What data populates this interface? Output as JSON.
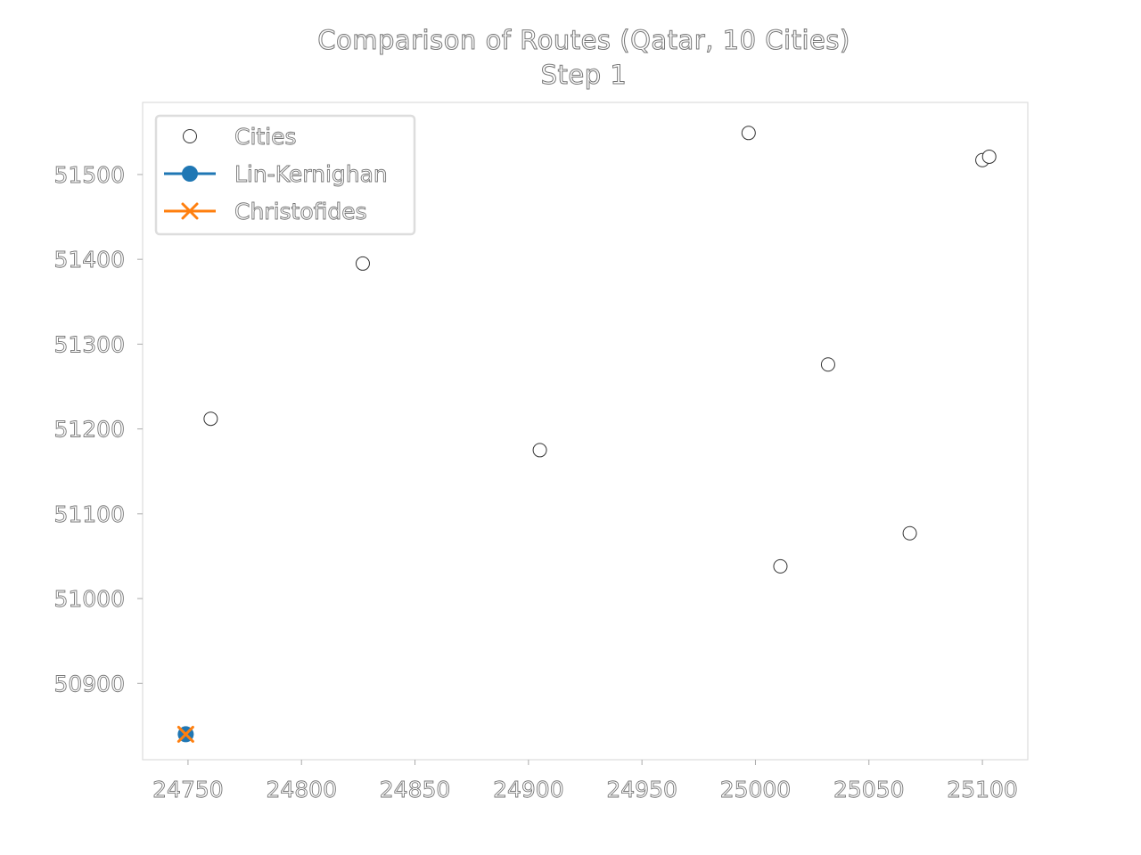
{
  "chart_data": {
    "type": "scatter",
    "title": "Comparison of Routes (Qatar, 10 Cities)",
    "subtitle": "Step 1",
    "xlabel": "",
    "ylabel": "",
    "xlim": [
      24730,
      25120
    ],
    "ylim": [
      50810,
      51585
    ],
    "x_ticks": [
      24750,
      24800,
      24850,
      24900,
      24950,
      25000,
      25050,
      25100
    ],
    "y_ticks": [
      50900,
      51000,
      51100,
      51200,
      51300,
      51400,
      51500
    ],
    "grid": false,
    "legend_position": "top-left",
    "series": [
      {
        "name": "Cities",
        "marker": "open-circle",
        "color": "#ffffff",
        "edge_color": "#333333",
        "points": [
          {
            "x": 24749,
            "y": 50840
          },
          {
            "x": 24760,
            "y": 51212
          },
          {
            "x": 24827,
            "y": 51395
          },
          {
            "x": 24905,
            "y": 51175
          },
          {
            "x": 24997,
            "y": 51549
          },
          {
            "x": 25011,
            "y": 51038
          },
          {
            "x": 25032,
            "y": 51276
          },
          {
            "x": 25068,
            "y": 51077
          },
          {
            "x": 25100,
            "y": 51517
          },
          {
            "x": 25103,
            "y": 51521
          }
        ]
      },
      {
        "name": "Lin-Kernighan",
        "marker": "filled-circle",
        "color": "#1f77b4",
        "points": [
          {
            "x": 24749,
            "y": 50840
          }
        ]
      },
      {
        "name": "Christofides",
        "marker": "x",
        "color": "#ff7f0e",
        "points": [
          {
            "x": 24749,
            "y": 50840
          }
        ]
      }
    ]
  }
}
